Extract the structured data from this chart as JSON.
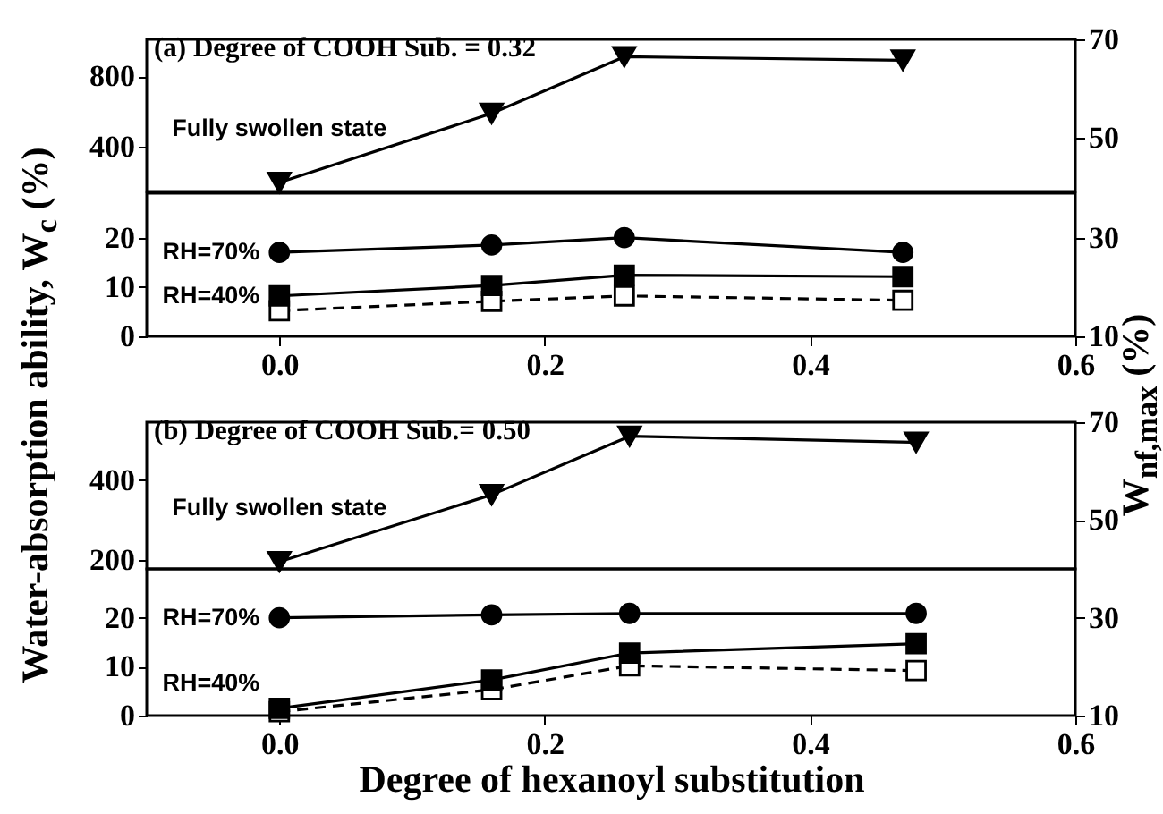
{
  "chart_data": [
    {
      "type": "line",
      "title": "(a) Degree of COOH Sub. = 0.32",
      "x": [
        0,
        0.16,
        0.26,
        0.47
      ],
      "xlim": [
        -0.1,
        0.6
      ],
      "ylim": [
        150,
        1008
      ],
      "yticks": [
        400,
        800
      ],
      "y2lim": [
        39,
        70
      ],
      "y2ticks": [
        50,
        70
      ],
      "tick_labels": "y",
      "series": [
        {
          "name": "Fully swollen state",
          "color": "#000000",
          "marker": "triangle",
          "line_style": "solid",
          "values": [
            200,
            590,
            910,
            890
          ]
        }
      ]
    },
    {
      "type": "line",
      "x": [
        0,
        0.16,
        0.26,
        0.47
      ],
      "xlim": [
        -0.1,
        0.6
      ],
      "xticks": [
        {
          "value": 0,
          "label": "0.0"
        },
        0.2,
        0.4,
        0.6
      ],
      "ylim": [
        0,
        29
      ],
      "yticks": [
        0,
        10,
        20
      ],
      "y2lim": [
        10,
        39
      ],
      "y2ticks": [
        10,
        30
      ],
      "ylabel": "Water-absorption ability, W$_{c}$ (%)",
      "y2label": "W$_{nf,max}$ (%)",
      "series": [
        {
          "name": "RH=70%",
          "color": "#000000",
          "marker": "circle",
          "line_style": "solid",
          "values": [
            17,
            18.5,
            20,
            17
          ]
        },
        {
          "name": "RH=40%",
          "color": "#000000",
          "marker": "square",
          "line_style": "solid",
          "values": [
            8.2,
            10.3,
            12.4,
            12.1
          ]
        },
        {
          "color": "#000000",
          "marker": "square",
          "line_style": "dashed",
          "axis": "y2",
          "values": [
            15.2,
            17.1,
            18.2,
            17.3
          ]
        }
      ]
    },
    {
      "type": "line",
      "title": "(b) Degree of COOH Sub.= 0.50",
      "x": [
        0,
        0.16,
        0.264,
        0.48
      ],
      "xlim": [
        -0.1,
        0.6
      ],
      "ylim": [
        178,
        544
      ],
      "yticks": [
        200,
        400
      ],
      "y2lim": [
        40,
        70
      ],
      "y2ticks": [
        50,
        70
      ],
      "tick_labels": "y",
      "series": [
        {
          "name": "Fully swollen state",
          "color": "#000000",
          "marker": "triangle",
          "line_style": "solid",
          "values": [
            196,
            363,
            509,
            494
          ]
        }
      ]
    },
    {
      "type": "line",
      "x": [
        0,
        0.16,
        0.264,
        0.48
      ],
      "xlim": [
        -0.1,
        0.6
      ],
      "xticks": [
        {
          "value": 0,
          "label": "0.0"
        },
        0.2,
        0.4,
        0.6
      ],
      "ylim": [
        0,
        30
      ],
      "yticks": [
        0,
        10,
        20
      ],
      "y2lim": [
        10,
        40
      ],
      "y2ticks": [
        10,
        30
      ],
      "xlabel": "Degree of hexanoyl substitution",
      "series": [
        {
          "name": "RH=70%",
          "color": "#000000",
          "marker": "circle",
          "line_style": "solid",
          "values": [
            20,
            20.6,
            20.9,
            20.9
          ]
        },
        {
          "name": "RH=40%",
          "color": "#000000",
          "marker": "square",
          "line_style": "solid",
          "values": [
            1.5,
            7.3,
            12.8,
            14.7
          ]
        },
        {
          "color": "#000000",
          "marker": "square",
          "line_style": "dashed",
          "axis": "y2",
          "values": [
            10.8,
            15.3,
            20.2,
            19.2
          ]
        }
      ]
    }
  ]
}
